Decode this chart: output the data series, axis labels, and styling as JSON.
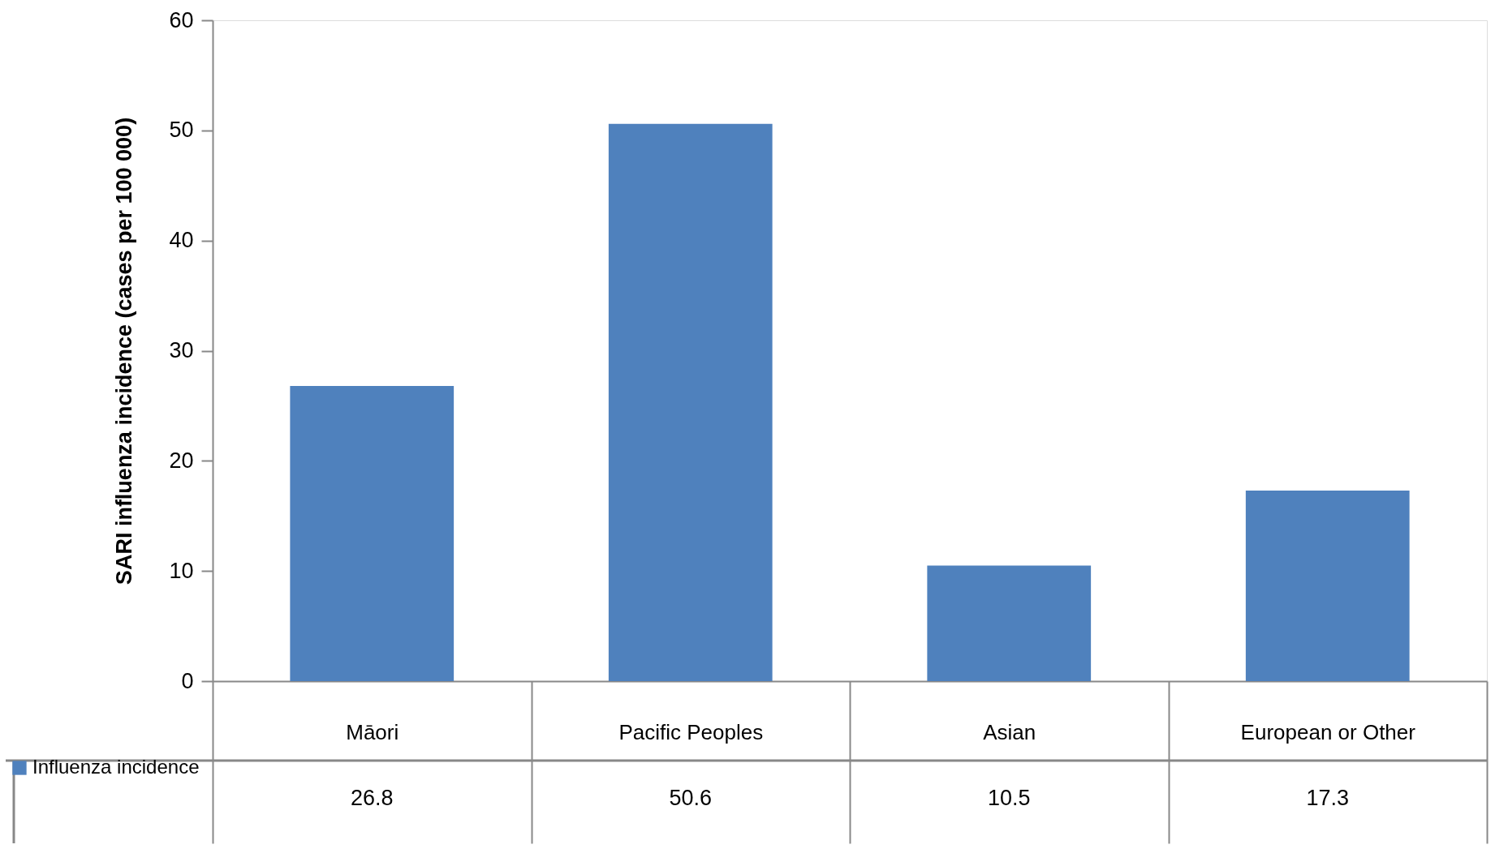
{
  "chart_data": {
    "type": "bar",
    "ylabel": "SARI influenza  incidence (cases per 100 000)",
    "categories": [
      "Māori",
      "Pacific Peoples",
      "Asian",
      "European or Other"
    ],
    "series": [
      {
        "name": "Influenza incidence",
        "color": "#4f81bd",
        "values": [
          26.8,
          50.6,
          10.5,
          17.3
        ]
      }
    ],
    "ylim": [
      0,
      60
    ],
    "yticks": [
      0,
      10,
      20,
      30,
      40,
      50,
      60
    ],
    "grid": false,
    "data_labels": true,
    "legend": "bottom left"
  }
}
